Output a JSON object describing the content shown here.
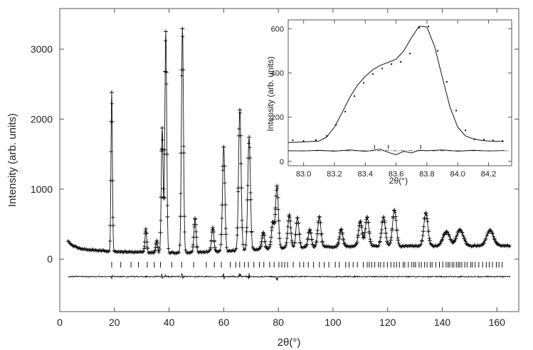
{
  "chart_data": [
    {
      "type": "line",
      "title": "",
      "xlabel": "2θ(°)",
      "ylabel": "Intensity (arb. units)",
      "xlim": [
        0,
        168
      ],
      "ylim": [
        -750,
        3580
      ],
      "xticks": [
        0,
        20,
        40,
        60,
        80,
        100,
        120,
        140,
        160
      ],
      "yticks": [
        0,
        1000,
        2000,
        3000
      ],
      "grid": false,
      "series": [
        {
          "role": "observed-calculated",
          "style": "line-with-plus-markers",
          "x_start": 3.0,
          "x_end": 165.0,
          "background_start": 180,
          "background_end": 190,
          "peaks": [
            {
              "x": 19.0,
              "y": 2380
            },
            {
              "x": 31.5,
              "y": 430
            },
            {
              "x": 35.5,
              "y": 260
            },
            {
              "x": 37.5,
              "y": 1870
            },
            {
              "x": 38.8,
              "y": 3250
            },
            {
              "x": 44.9,
              "y": 3290
            },
            {
              "x": 49.5,
              "y": 580
            },
            {
              "x": 56.0,
              "y": 450
            },
            {
              "x": 60.0,
              "y": 1600
            },
            {
              "x": 65.9,
              "y": 2130
            },
            {
              "x": 69.3,
              "y": 1740
            },
            {
              "x": 74.5,
              "y": 380
            },
            {
              "x": 78.0,
              "y": 520
            },
            {
              "x": 79.5,
              "y": 1040
            },
            {
              "x": 84.0,
              "y": 630
            },
            {
              "x": 87.0,
              "y": 590
            },
            {
              "x": 91.5,
              "y": 420
            },
            {
              "x": 95.0,
              "y": 600
            },
            {
              "x": 103.0,
              "y": 420
            },
            {
              "x": 110.0,
              "y": 540
            },
            {
              "x": 112.5,
              "y": 600
            },
            {
              "x": 118.5,
              "y": 600
            },
            {
              "x": 122.5,
              "y": 700
            },
            {
              "x": 134.0,
              "y": 660
            },
            {
              "x": 141.5,
              "y": 390
            },
            {
              "x": 146.5,
              "y": 420
            },
            {
              "x": 157.5,
              "y": 410
            }
          ]
        },
        {
          "role": "bragg-reflections",
          "style": "tick-marks",
          "y": -80,
          "x_range": [
            19,
            162
          ]
        },
        {
          "role": "difference",
          "style": "line",
          "y": -250
        }
      ]
    },
    {
      "type": "line",
      "title": "",
      "xlabel": "2θ(°)",
      "ylabel": "Intensity (arb. units)",
      "xlim": [
        82.9,
        84.35
      ],
      "ylim": [
        -20,
        640
      ],
      "xticks": [
        83.0,
        83.2,
        83.4,
        83.6,
        83.8,
        84.0,
        84.2
      ],
      "xtick_labels": [
        "83.0",
        "83.2",
        "83.4",
        "83.6",
        "83.8",
        "84.0",
        "84.2"
      ],
      "yticks": [
        0,
        200,
        400,
        600
      ],
      "grid": false,
      "series": [
        {
          "role": "calculated",
          "style": "line",
          "x": [
            82.9,
            83.0,
            83.1,
            83.15,
            83.2,
            83.25,
            83.3,
            83.35,
            83.4,
            83.45,
            83.5,
            83.55,
            83.6,
            83.65,
            83.7,
            83.75,
            83.8,
            83.85,
            83.9,
            83.95,
            84.0,
            84.05,
            84.1,
            84.15,
            84.2,
            84.3
          ],
          "y": [
            85,
            88,
            92,
            110,
            155,
            220,
            290,
            345,
            385,
            415,
            435,
            448,
            462,
            500,
            560,
            612,
            608,
            520,
            380,
            245,
            155,
            115,
            102,
            95,
            92,
            90
          ]
        },
        {
          "role": "observed",
          "style": "dots",
          "x": [
            82.93,
            83.0,
            83.08,
            83.15,
            83.21,
            83.27,
            83.33,
            83.39,
            83.45,
            83.51,
            83.57,
            83.63,
            83.69,
            83.75,
            83.81,
            83.87,
            83.93,
            83.99,
            84.05,
            84.11,
            84.17,
            84.23,
            84.29
          ],
          "y": [
            95,
            92,
            96,
            115,
            165,
            225,
            295,
            355,
            395,
            420,
            440,
            450,
            488,
            605,
            610,
            500,
            360,
            230,
            140,
            100,
            98,
            94,
            92
          ]
        },
        {
          "role": "bragg-reflections",
          "style": "tick-marks",
          "x": [
            83.46,
            83.55,
            83.76
          ],
          "y": 65
        },
        {
          "role": "difference",
          "style": "line",
          "x": [
            82.9,
            83.0,
            83.1,
            83.2,
            83.3,
            83.4,
            83.45,
            83.5,
            83.55,
            83.6,
            83.65,
            83.7,
            83.75,
            83.8,
            83.9,
            84.0,
            84.1,
            84.2,
            84.3
          ],
          "y": [
            48,
            47,
            50,
            46,
            52,
            45,
            50,
            55,
            40,
            30,
            45,
            38,
            50,
            48,
            52,
            46,
            50,
            47,
            49
          ]
        },
        {
          "role": "difference-baseline",
          "style": "dash-dot",
          "y": 48
        }
      ]
    }
  ]
}
